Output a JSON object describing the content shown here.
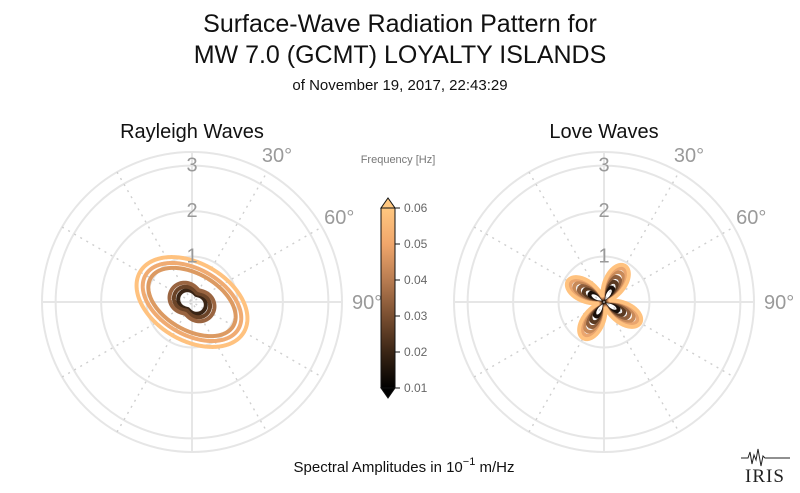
{
  "figure": {
    "title_line1": "Surface-Wave Radiation Pattern for",
    "title_line2": "MW 7.0 (GCMT) LOYALTY ISLANDS",
    "subtitle": "of November 19, 2017, 22:43:29",
    "footer_prefix": "Spectral Amplitudes in 10",
    "footer_exponent": "−1",
    "footer_suffix": " m/Hz",
    "logo_text": "IRIS"
  },
  "colorbar": {
    "title": "Frequency [Hz]",
    "tick_labels": [
      "0.01",
      "0.02",
      "0.03",
      "0.04",
      "0.05",
      "0.06"
    ],
    "range": [
      0.01,
      0.06
    ],
    "extend": "both",
    "colormap": "copper",
    "colors": [
      "#000000",
      "#3a2515",
      "#7a4f31",
      "#b87c51",
      "#f0a66b",
      "#ffc780"
    ]
  },
  "chart_data": [
    {
      "type": "polar-line",
      "title": "Rayleigh Waves",
      "r_ticks": [
        "1",
        "2",
        "3"
      ],
      "r_max": 3.3,
      "angle_ticks": [
        "30°",
        "60°",
        "90°"
      ],
      "angle_direction": "clockwise from north",
      "grid": true,
      "series": [
        {
          "frequency": 0.01,
          "color": "#3a2515",
          "lobe_angle_deg": 120,
          "r_max": 0.32,
          "r_min": 0.18,
          "pattern": "two-lobe"
        },
        {
          "frequency": 0.02,
          "color": "#6b4428",
          "lobe_angle_deg": 120,
          "r_max": 0.42,
          "r_min": 0.22,
          "pattern": "two-lobe"
        },
        {
          "frequency": 0.03,
          "color": "#9a6541",
          "lobe_angle_deg": 120,
          "r_max": 0.52,
          "r_min": 0.3,
          "pattern": "two-lobe"
        },
        {
          "frequency": 0.04,
          "color": "#dc9a62",
          "lobe_angle_deg": 120,
          "r_max": 1.05,
          "r_min": 0.62,
          "pattern": "ellipse"
        },
        {
          "frequency": 0.05,
          "color": "#f0ab72",
          "lobe_angle_deg": 120,
          "r_max": 1.18,
          "r_min": 0.72,
          "pattern": "ellipse"
        },
        {
          "frequency": 0.06,
          "color": "#ffc27f",
          "lobe_angle_deg": 120,
          "r_max": 1.32,
          "r_min": 0.85,
          "pattern": "ellipse"
        }
      ]
    },
    {
      "type": "polar-line",
      "title": "Love Waves",
      "r_ticks": [
        "1",
        "2",
        "3"
      ],
      "r_max": 3.3,
      "angle_ticks": [
        "30°",
        "60°",
        "90°"
      ],
      "angle_direction": "clockwise from north",
      "grid": true,
      "series": [
        {
          "frequency": 0.01,
          "color": "#1a100a",
          "lobe_angle_deg": 30,
          "r_max": 0.36,
          "r_min": 0.06,
          "pattern": "four-lobe"
        },
        {
          "frequency": 0.02,
          "color": "#5a3a22",
          "lobe_angle_deg": 30,
          "r_max": 0.5,
          "r_min": 0.08,
          "pattern": "four-lobe"
        },
        {
          "frequency": 0.03,
          "color": "#8f5f3d",
          "lobe_angle_deg": 30,
          "r_max": 0.62,
          "r_min": 0.1,
          "pattern": "four-lobe"
        },
        {
          "frequency": 0.04,
          "color": "#c88a59",
          "lobe_angle_deg": 30,
          "r_max": 0.74,
          "r_min": 0.12,
          "pattern": "four-lobe"
        },
        {
          "frequency": 0.05,
          "color": "#eaa56e",
          "lobe_angle_deg": 30,
          "r_max": 0.84,
          "r_min": 0.14,
          "pattern": "four-lobe"
        },
        {
          "frequency": 0.06,
          "color": "#ffc27f",
          "lobe_angle_deg": 30,
          "r_max": 0.92,
          "r_min": 0.15,
          "pattern": "four-lobe"
        }
      ]
    }
  ]
}
